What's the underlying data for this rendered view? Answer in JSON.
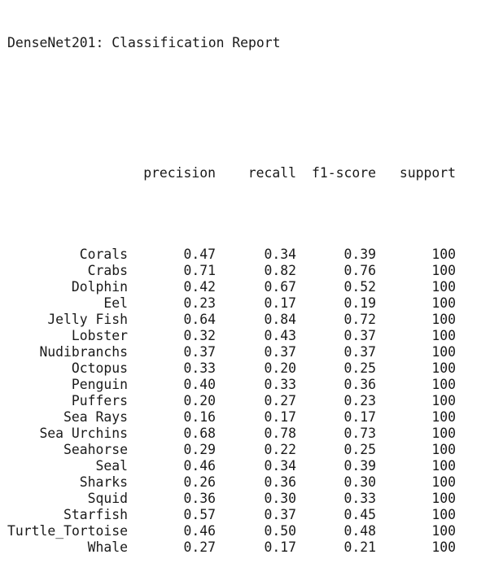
{
  "report": {
    "title": "DenseNet201: Classification Report",
    "headers": {
      "precision": "precision",
      "recall": "recall",
      "f1": "f1-score",
      "support": "support"
    },
    "rows": [
      {
        "name": "Corals",
        "precision": "0.47",
        "recall": "0.34",
        "f1": "0.39",
        "support": "100"
      },
      {
        "name": "Crabs",
        "precision": "0.71",
        "recall": "0.82",
        "f1": "0.76",
        "support": "100"
      },
      {
        "name": "Dolphin",
        "precision": "0.42",
        "recall": "0.67",
        "f1": "0.52",
        "support": "100"
      },
      {
        "name": "Eel",
        "precision": "0.23",
        "recall": "0.17",
        "f1": "0.19",
        "support": "100"
      },
      {
        "name": "Jelly Fish",
        "precision": "0.64",
        "recall": "0.84",
        "f1": "0.72",
        "support": "100"
      },
      {
        "name": "Lobster",
        "precision": "0.32",
        "recall": "0.43",
        "f1": "0.37",
        "support": "100"
      },
      {
        "name": "Nudibranchs",
        "precision": "0.37",
        "recall": "0.37",
        "f1": "0.37",
        "support": "100"
      },
      {
        "name": "Octopus",
        "precision": "0.33",
        "recall": "0.20",
        "f1": "0.25",
        "support": "100"
      },
      {
        "name": "Penguin",
        "precision": "0.40",
        "recall": "0.33",
        "f1": "0.36",
        "support": "100"
      },
      {
        "name": "Puffers",
        "precision": "0.20",
        "recall": "0.27",
        "f1": "0.23",
        "support": "100"
      },
      {
        "name": "Sea Rays",
        "precision": "0.16",
        "recall": "0.17",
        "f1": "0.17",
        "support": "100"
      },
      {
        "name": "Sea Urchins",
        "precision": "0.68",
        "recall": "0.78",
        "f1": "0.73",
        "support": "100"
      },
      {
        "name": "Seahorse",
        "precision": "0.29",
        "recall": "0.22",
        "f1": "0.25",
        "support": "100"
      },
      {
        "name": "Seal",
        "precision": "0.46",
        "recall": "0.34",
        "f1": "0.39",
        "support": "100"
      },
      {
        "name": "Sharks",
        "precision": "0.26",
        "recall": "0.36",
        "f1": "0.30",
        "support": "100"
      },
      {
        "name": "Squid",
        "precision": "0.36",
        "recall": "0.30",
        "f1": "0.33",
        "support": "100"
      },
      {
        "name": "Starfish",
        "precision": "0.57",
        "recall": "0.37",
        "f1": "0.45",
        "support": "100"
      },
      {
        "name": "Turtle_Tortoise",
        "precision": "0.46",
        "recall": "0.50",
        "f1": "0.48",
        "support": "100"
      },
      {
        "name": "Whale",
        "precision": "0.27",
        "recall": "0.17",
        "f1": "0.21",
        "support": "100"
      }
    ]
  }
}
